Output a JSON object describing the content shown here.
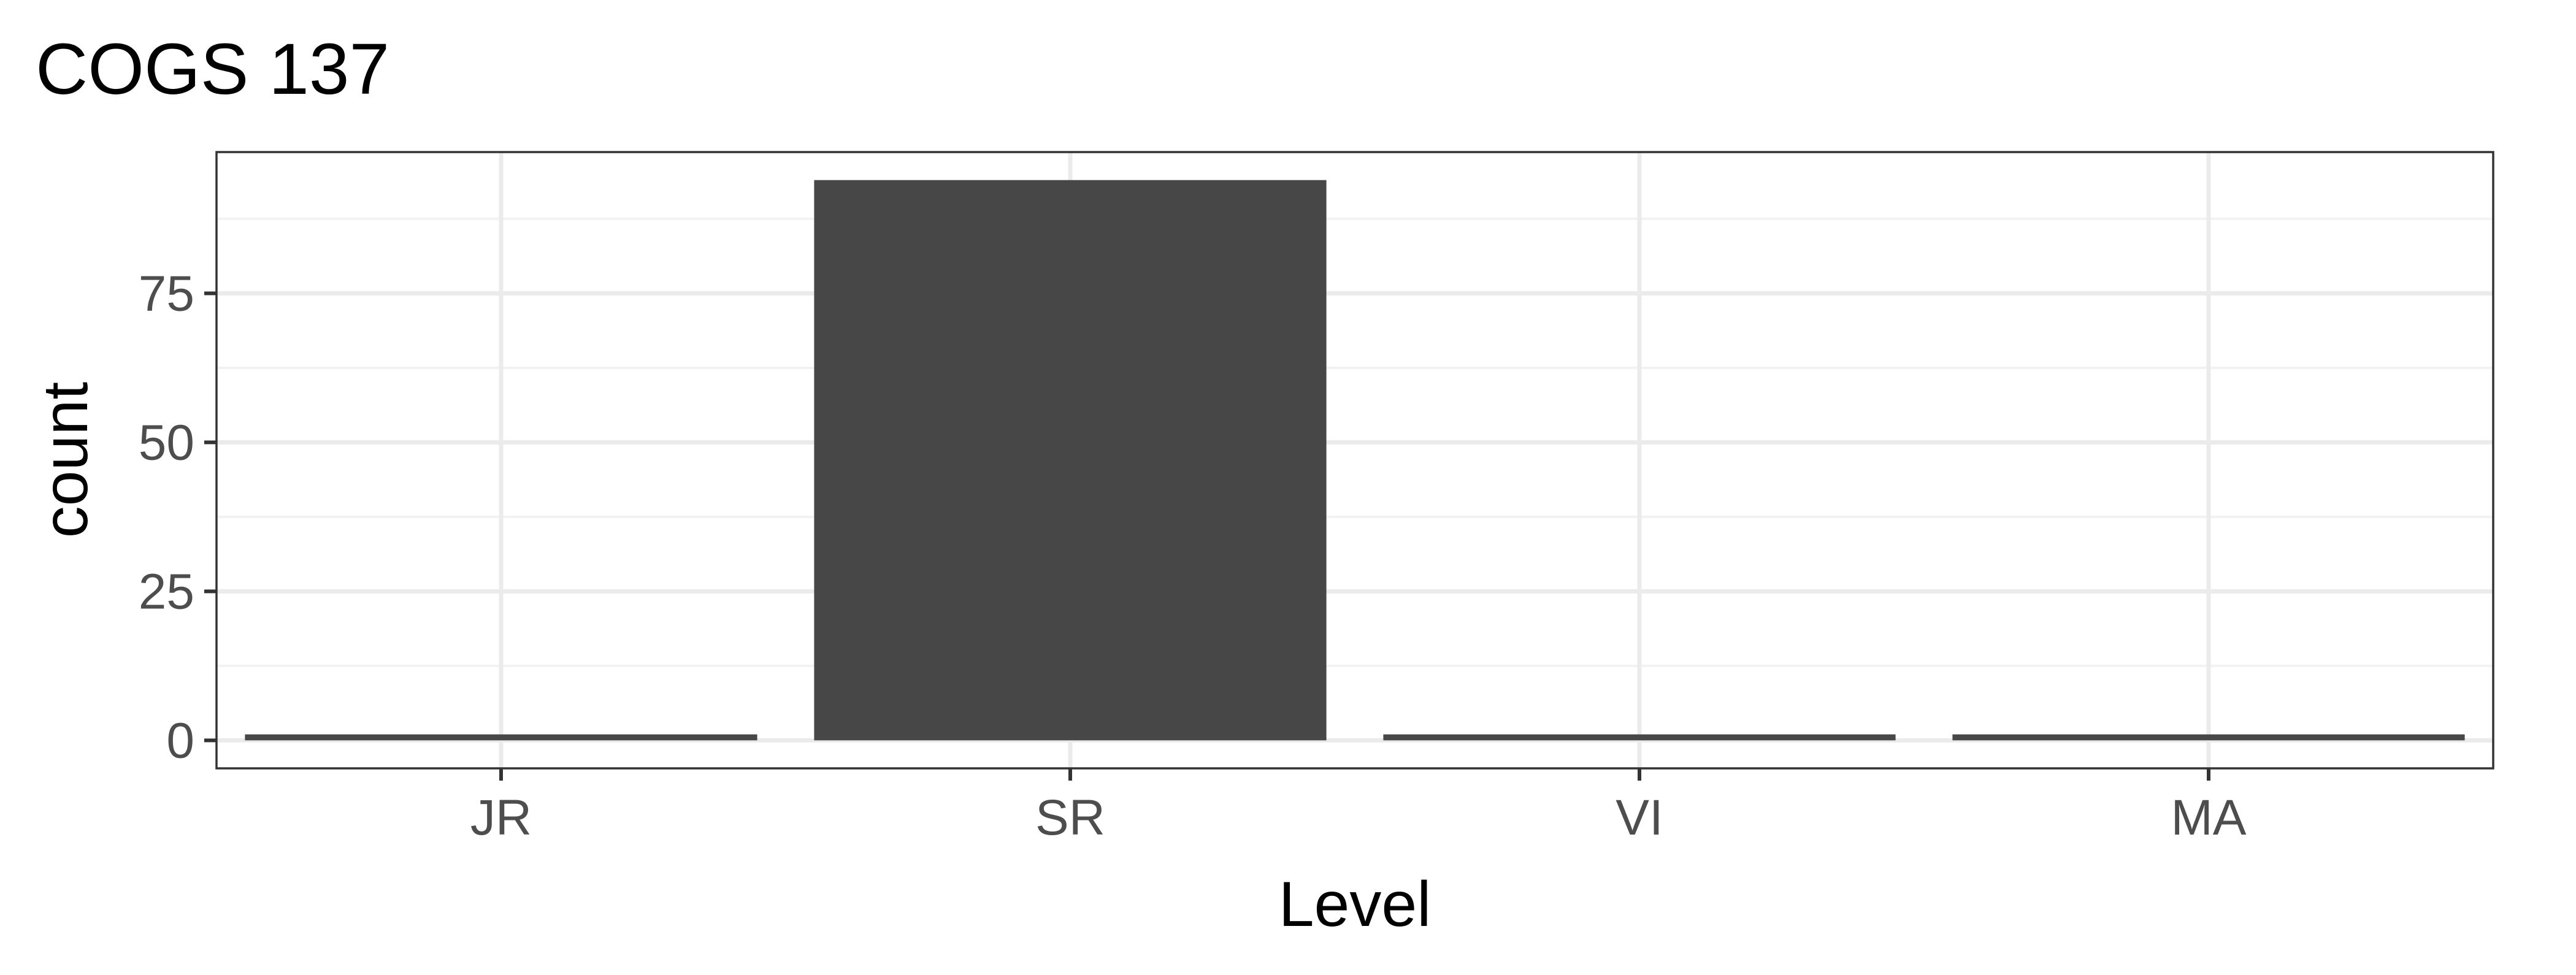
{
  "chart_data": {
    "type": "bar",
    "title": "COGS 137",
    "xlabel": "Level",
    "ylabel": "count",
    "categories": [
      "JR",
      "SR",
      "VI",
      "MA"
    ],
    "values": [
      1,
      94,
      1,
      1
    ],
    "ylim": [
      -4.7,
      98.7
    ],
    "yticks": [
      0,
      25,
      50,
      75
    ],
    "ytick_labels": [
      "0",
      "25",
      "50",
      "75"
    ],
    "grid": true,
    "legend": "none",
    "colors": {
      "bar": "#474747",
      "panel_border": "#333333",
      "grid_major": "#ebebeb",
      "grid_minor": "#f2f2f2",
      "tick_text": "#4d4d4d",
      "title_text": "#000000",
      "background": "#ffffff"
    }
  }
}
